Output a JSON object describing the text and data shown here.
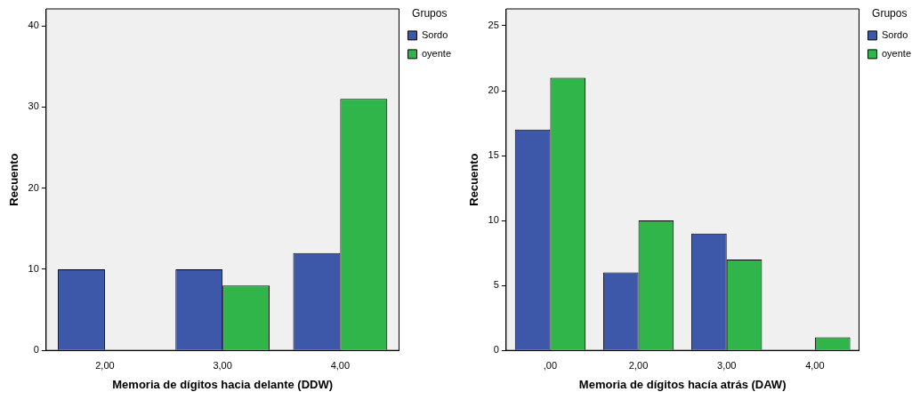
{
  "chart_data": [
    {
      "type": "bar",
      "xlabel": "Memoria de dígitos hacia delante (DDW)",
      "ylabel": "Recuento",
      "legend_title": "Grupos",
      "legend": "top right",
      "grid": false,
      "categories": [
        "2,00",
        "3,00",
        "4,00"
      ],
      "ylim": [
        0,
        42.1
      ],
      "yticks": [
        0,
        10,
        20,
        30,
        40
      ],
      "series": [
        {
          "name": "Sordo",
          "color": "#3d58a8",
          "values": [
            10,
            10,
            12
          ]
        },
        {
          "name": "oyente",
          "color": "#2fb54a",
          "values": [
            null,
            8,
            31
          ]
        }
      ]
    },
    {
      "type": "bar",
      "xlabel": "Memoria de dígitos hacía atrás (DAW)",
      "ylabel": "Recuento",
      "legend_title": "Grupos",
      "legend": "top right",
      "grid": false,
      "categories": [
        ",00",
        "2,00",
        "3,00",
        "4,00"
      ],
      "ylim": [
        0,
        26.3
      ],
      "yticks": [
        0,
        5,
        10,
        15,
        20,
        25
      ],
      "series": [
        {
          "name": "Sordo",
          "color": "#3d58a8",
          "values": [
            17,
            6,
            9,
            null
          ]
        },
        {
          "name": "oyente",
          "color": "#2fb54a",
          "values": [
            21,
            10,
            7,
            1
          ]
        }
      ]
    }
  ]
}
